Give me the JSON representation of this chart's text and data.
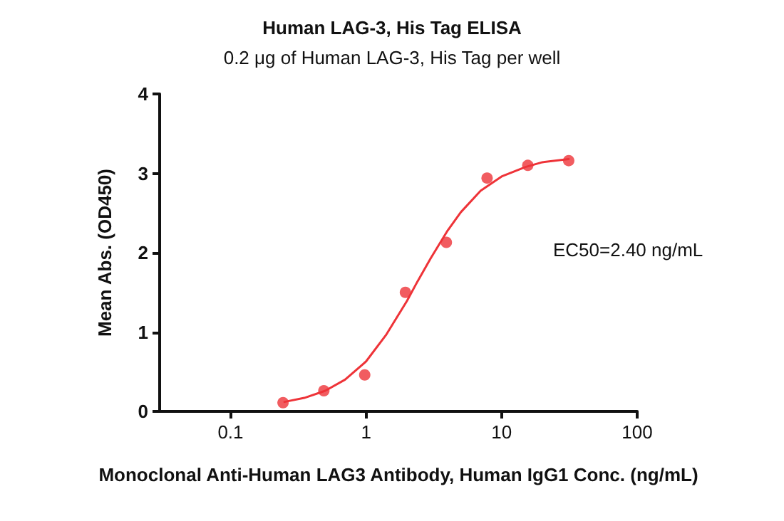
{
  "chart_data": {
    "type": "scatter",
    "title": "Human LAG-3, His Tag ELISA",
    "subtitle": "0.2 μg of Human LAG-3, His Tag per well",
    "xlabel": "Monoclonal Anti-Human LAG3 Antibody, Human IgG1 Conc. (ng/mL)",
    "ylabel": "Mean Abs. (OD450)",
    "annotations": [
      "EC50=2.40 ng/mL"
    ],
    "log": "x",
    "xlim": [
      0.03,
      100
    ],
    "xticks": [
      0.1,
      1,
      10,
      100
    ],
    "ylim": [
      0,
      4
    ],
    "yticks": [
      0,
      1,
      2,
      3,
      4
    ],
    "grid": false,
    "series": [
      {
        "color": "#ee3338",
        "marker": "circle",
        "x": [
          0.244,
          0.488,
          0.977,
          1.95,
          3.91,
          7.81,
          15.6,
          31.25
        ],
        "values": [
          0.11,
          0.26,
          0.46,
          1.5,
          2.13,
          2.94,
          3.1,
          3.16
        ]
      },
      {
        "type": "line",
        "color": "#ee3338",
        "marker": "none",
        "line_style": "solid",
        "x": [
          0.25,
          0.35,
          0.5,
          0.7,
          1,
          1.4,
          2,
          2.4,
          3,
          4,
          5,
          7,
          10,
          15,
          20,
          31.25
        ],
        "values": [
          0.12,
          0.17,
          0.26,
          0.4,
          0.63,
          0.96,
          1.39,
          1.64,
          1.93,
          2.28,
          2.51,
          2.78,
          2.96,
          3.08,
          3.14,
          3.18
        ]
      }
    ]
  }
}
